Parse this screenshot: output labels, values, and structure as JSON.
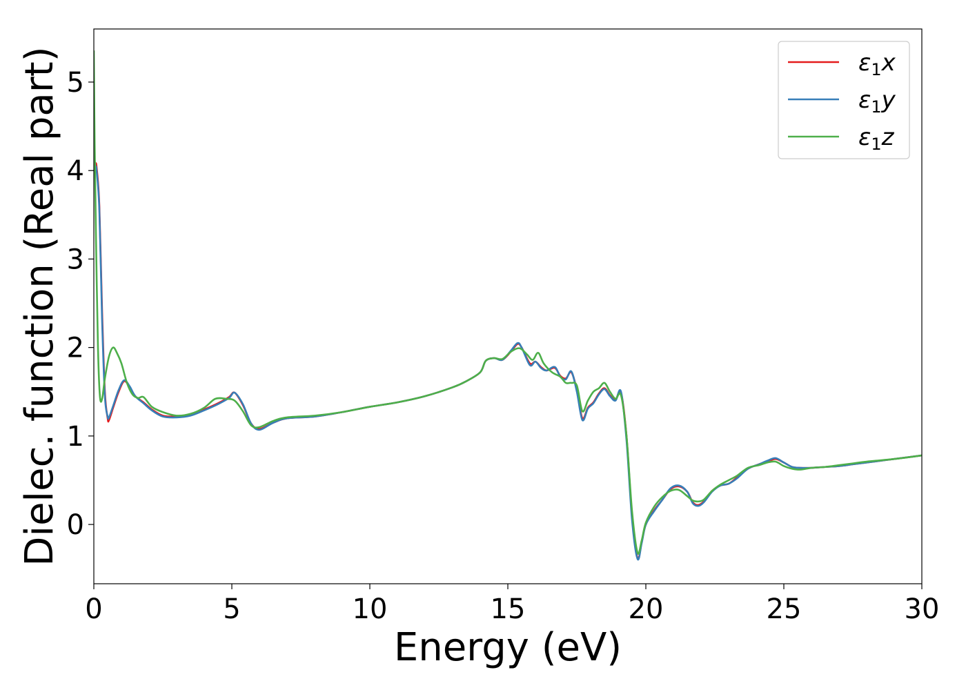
{
  "chart_data": {
    "type": "line",
    "xlabel": "Energy (eV)",
    "ylabel": "Dielec. function (Real part)",
    "xlim": [
      0,
      30
    ],
    "ylim": [
      -0.67,
      5.6
    ],
    "xticks": [
      0,
      5,
      10,
      15,
      20,
      25,
      30
    ],
    "yticks": [
      0,
      1,
      2,
      3,
      4,
      5
    ],
    "grid": false,
    "legend_position": "top-right",
    "series": [
      {
        "name": "ε1x",
        "legend_main": "ε",
        "legend_sub": "1",
        "legend_var": "x",
        "color": "#e41a1c",
        "x": [
          0.0,
          0.05,
          0.1,
          0.2,
          0.3,
          0.4,
          0.5,
          0.55,
          0.7,
          0.9,
          1.1,
          1.3,
          1.5,
          1.8,
          2.1,
          2.5,
          3.0,
          3.5,
          4.0,
          4.5,
          4.9,
          5.1,
          5.4,
          5.7,
          6.0,
          6.5,
          7.0,
          8.0,
          9.0,
          10.0,
          11.0,
          12.0,
          13.0,
          13.5,
          14.0,
          14.2,
          14.5,
          14.8,
          15.1,
          15.35,
          15.5,
          15.8,
          16.0,
          16.2,
          16.4,
          16.7,
          16.9,
          17.1,
          17.3,
          17.5,
          17.7,
          17.9,
          18.1,
          18.3,
          18.5,
          18.7,
          18.9,
          19.1,
          19.3,
          19.5,
          19.7,
          19.85,
          20.0,
          20.3,
          20.6,
          20.9,
          21.2,
          21.5,
          21.7,
          21.9,
          22.1,
          22.4,
          22.7,
          23.0,
          23.3,
          23.7,
          24.1,
          24.4,
          24.7,
          25.0,
          25.3,
          25.6,
          26.0,
          26.5,
          27.0,
          27.5,
          28.0,
          29.0,
          30.0
        ],
        "y": [
          4.15,
          4.08,
          4.04,
          3.6,
          2.4,
          1.5,
          1.2,
          1.18,
          1.32,
          1.5,
          1.62,
          1.55,
          1.45,
          1.38,
          1.3,
          1.23,
          1.22,
          1.24,
          1.3,
          1.37,
          1.44,
          1.49,
          1.35,
          1.14,
          1.08,
          1.15,
          1.2,
          1.22,
          1.27,
          1.33,
          1.38,
          1.45,
          1.55,
          1.62,
          1.72,
          1.85,
          1.88,
          1.86,
          1.95,
          2.04,
          2.0,
          1.82,
          1.84,
          1.78,
          1.74,
          1.77,
          1.68,
          1.65,
          1.72,
          1.52,
          1.2,
          1.32,
          1.38,
          1.48,
          1.54,
          1.46,
          1.41,
          1.49,
          1.0,
          0.1,
          -0.38,
          -0.2,
          0.0,
          0.16,
          0.28,
          0.4,
          0.43,
          0.37,
          0.25,
          0.22,
          0.26,
          0.38,
          0.44,
          0.46,
          0.53,
          0.63,
          0.68,
          0.71,
          0.74,
          0.7,
          0.65,
          0.64,
          0.64,
          0.65,
          0.66,
          0.68,
          0.7,
          0.74,
          0.78
        ]
      },
      {
        "name": "ε1y",
        "legend_main": "ε",
        "legend_sub": "1",
        "legend_var": "y",
        "color": "#377eb8",
        "x": [
          0.0,
          0.05,
          0.1,
          0.2,
          0.3,
          0.4,
          0.5,
          0.55,
          0.7,
          0.9,
          1.1,
          1.3,
          1.5,
          1.8,
          2.1,
          2.5,
          3.0,
          3.5,
          4.0,
          4.5,
          4.9,
          5.1,
          5.4,
          5.7,
          6.0,
          6.5,
          7.0,
          8.0,
          9.0,
          10.0,
          11.0,
          12.0,
          13.0,
          13.5,
          14.0,
          14.2,
          14.5,
          14.8,
          15.1,
          15.35,
          15.5,
          15.8,
          16.0,
          16.2,
          16.4,
          16.7,
          16.9,
          17.1,
          17.3,
          17.5,
          17.7,
          17.9,
          18.1,
          18.3,
          18.5,
          18.7,
          18.9,
          19.1,
          19.3,
          19.5,
          19.7,
          19.85,
          20.0,
          20.3,
          20.6,
          20.9,
          21.2,
          21.5,
          21.7,
          21.9,
          22.1,
          22.4,
          22.7,
          23.0,
          23.3,
          23.7,
          24.1,
          24.4,
          24.7,
          25.0,
          25.3,
          25.6,
          26.0,
          26.5,
          27.0,
          27.5,
          28.0,
          29.0,
          30.0
        ],
        "y": [
          4.2,
          4.06,
          4.0,
          3.55,
          2.3,
          1.45,
          1.22,
          1.21,
          1.34,
          1.52,
          1.63,
          1.56,
          1.45,
          1.37,
          1.29,
          1.22,
          1.21,
          1.23,
          1.29,
          1.36,
          1.43,
          1.49,
          1.36,
          1.14,
          1.07,
          1.15,
          1.2,
          1.22,
          1.27,
          1.33,
          1.38,
          1.45,
          1.55,
          1.62,
          1.72,
          1.85,
          1.88,
          1.86,
          1.96,
          2.05,
          2.0,
          1.8,
          1.84,
          1.77,
          1.74,
          1.78,
          1.67,
          1.64,
          1.73,
          1.5,
          1.18,
          1.31,
          1.37,
          1.47,
          1.53,
          1.45,
          1.4,
          1.5,
          0.95,
          0.05,
          -0.39,
          -0.21,
          0.0,
          0.15,
          0.28,
          0.41,
          0.44,
          0.37,
          0.24,
          0.21,
          0.25,
          0.37,
          0.44,
          0.46,
          0.52,
          0.63,
          0.68,
          0.72,
          0.75,
          0.7,
          0.65,
          0.64,
          0.64,
          0.65,
          0.66,
          0.68,
          0.7,
          0.74,
          0.78
        ]
      },
      {
        "name": "ε1z",
        "legend_main": "ε",
        "legend_sub": "1",
        "legend_var": "z",
        "color": "#4daf4a",
        "x": [
          0.0,
          0.03,
          0.08,
          0.15,
          0.22,
          0.3,
          0.4,
          0.55,
          0.7,
          0.85,
          1.0,
          1.2,
          1.4,
          1.6,
          1.8,
          2.1,
          2.5,
          3.0,
          3.5,
          4.0,
          4.4,
          4.8,
          5.1,
          5.4,
          5.7,
          6.0,
          6.5,
          7.0,
          8.0,
          9.0,
          10.0,
          11.0,
          12.0,
          13.0,
          13.5,
          14.0,
          14.2,
          14.5,
          14.8,
          15.1,
          15.35,
          15.5,
          15.7,
          15.9,
          16.1,
          16.3,
          16.6,
          16.9,
          17.1,
          17.3,
          17.5,
          17.7,
          17.9,
          18.1,
          18.3,
          18.5,
          18.7,
          18.9,
          19.1,
          19.3,
          19.5,
          19.7,
          19.85,
          20.0,
          20.3,
          20.6,
          20.9,
          21.2,
          21.5,
          21.7,
          21.9,
          22.1,
          22.4,
          22.7,
          23.0,
          23.3,
          23.7,
          24.1,
          24.4,
          24.7,
          25.0,
          25.3,
          25.6,
          26.0,
          26.5,
          27.0,
          27.5,
          28.0,
          29.0,
          30.0
        ],
        "y": [
          5.35,
          4.3,
          3.2,
          2.0,
          1.45,
          1.42,
          1.65,
          1.9,
          2.0,
          1.93,
          1.82,
          1.6,
          1.47,
          1.43,
          1.44,
          1.33,
          1.27,
          1.23,
          1.25,
          1.32,
          1.42,
          1.42,
          1.4,
          1.28,
          1.12,
          1.1,
          1.17,
          1.21,
          1.23,
          1.27,
          1.33,
          1.38,
          1.45,
          1.55,
          1.62,
          1.72,
          1.85,
          1.88,
          1.87,
          1.95,
          1.99,
          1.98,
          1.92,
          1.86,
          1.94,
          1.82,
          1.72,
          1.67,
          1.6,
          1.6,
          1.57,
          1.28,
          1.4,
          1.5,
          1.54,
          1.6,
          1.5,
          1.42,
          1.46,
          1.0,
          0.15,
          -0.32,
          -0.18,
          0.02,
          0.2,
          0.31,
          0.38,
          0.39,
          0.32,
          0.27,
          0.26,
          0.28,
          0.38,
          0.45,
          0.5,
          0.55,
          0.64,
          0.67,
          0.7,
          0.71,
          0.66,
          0.63,
          0.62,
          0.64,
          0.65,
          0.67,
          0.69,
          0.71,
          0.74,
          0.78
        ]
      }
    ]
  }
}
